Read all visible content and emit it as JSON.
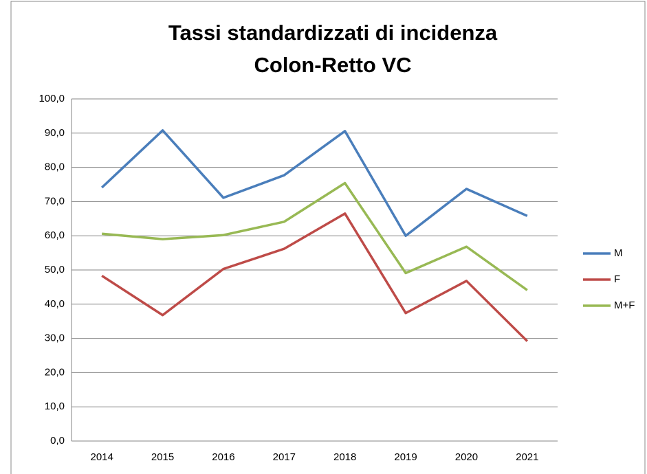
{
  "chart_data": {
    "type": "line",
    "title": [
      "Tassi standardizzati di incidenza",
      "Colon-Retto VC"
    ],
    "categories": [
      "2014",
      "2015",
      "2016",
      "2017",
      "2018",
      "2019",
      "2020",
      "2021"
    ],
    "series": [
      {
        "name": "M",
        "color": "#4a7ebb",
        "values": [
          74.1,
          90.8,
          71.1,
          77.7,
          90.6,
          60.0,
          73.7,
          65.8
        ]
      },
      {
        "name": "F",
        "color": "#be4b48",
        "values": [
          48.3,
          36.8,
          50.3,
          56.2,
          66.5,
          37.4,
          46.8,
          29.2
        ]
      },
      {
        "name": "M+F",
        "color": "#98b954",
        "values": [
          60.6,
          59.0,
          60.2,
          64.1,
          75.4,
          49.1,
          56.8,
          44.1
        ]
      }
    ],
    "ylim": [
      0,
      100
    ],
    "yticks": [
      {
        "value": 0,
        "label": "0,0"
      },
      {
        "value": 10,
        "label": "10,0"
      },
      {
        "value": 20,
        "label": "20,0"
      },
      {
        "value": 30,
        "label": "30,0"
      },
      {
        "value": 40,
        "label": "40,0"
      },
      {
        "value": 50,
        "label": "50,0"
      },
      {
        "value": 60,
        "label": "60,0"
      },
      {
        "value": 70,
        "label": "70,0"
      },
      {
        "value": 80,
        "label": "80,0"
      },
      {
        "value": 90,
        "label": "90,0"
      },
      {
        "value": 100,
        "label": "100,0"
      }
    ],
    "grid": true,
    "legend": "right"
  }
}
